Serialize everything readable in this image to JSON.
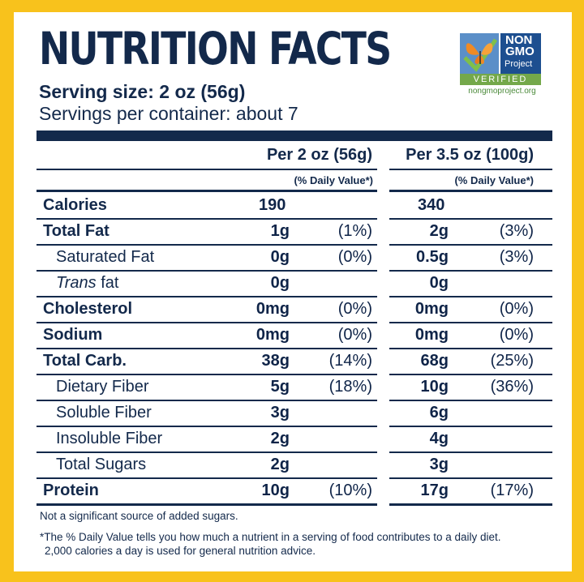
{
  "title": "NUTRITION FACTS",
  "serving_size": "Serving size: 2 oz (56g)",
  "servings_per_container": "Servings per container: about 7",
  "logo": {
    "line1": "NON",
    "line2": "GMO",
    "line3": "Project",
    "verified": "VERIFIED",
    "url": "nongmoproject.org",
    "icon": "butterfly-icon"
  },
  "columns": {
    "col1_header": "Per 2 oz (56g)",
    "col2_header": "Per 3.5 oz (100g)",
    "dv_label": "(% Daily Value*)"
  },
  "rows": [
    {
      "name": "Calories",
      "v1": "190",
      "d1": "",
      "v2": "340",
      "d2": ""
    },
    {
      "name": "Total Fat",
      "v1": "1g",
      "d1": "(1%)",
      "v2": "2g",
      "d2": "(3%)"
    },
    {
      "name": "Saturated Fat",
      "v1": "0g",
      "d1": "(0%)",
      "v2": "0.5g",
      "d2": "(3%)"
    },
    {
      "name_italic": "Trans",
      "name_rest": " fat",
      "v1": "0g",
      "d1": "",
      "v2": "0g",
      "d2": ""
    },
    {
      "name": "Cholesterol",
      "v1": "0mg",
      "d1": "(0%)",
      "v2": "0mg",
      "d2": "(0%)"
    },
    {
      "name": "Sodium",
      "v1": "0mg",
      "d1": "(0%)",
      "v2": "0mg",
      "d2": "(0%)"
    },
    {
      "name": "Total Carb.",
      "v1": "38g",
      "d1": "(14%)",
      "v2": "68g",
      "d2": "(25%)"
    },
    {
      "name": "Dietary Fiber",
      "v1": "5g",
      "d1": "(18%)",
      "v2": "10g",
      "d2": "(36%)"
    },
    {
      "name": "Soluble Fiber",
      "v1": "3g",
      "d1": "",
      "v2": "6g",
      "d2": ""
    },
    {
      "name": "Insoluble Fiber",
      "v1": "2g",
      "d1": "",
      "v2": "4g",
      "d2": ""
    },
    {
      "name": "Total Sugars",
      "v1": "2g",
      "d1": "",
      "v2": "3g",
      "d2": ""
    },
    {
      "name": "Protein",
      "v1": "10g",
      "d1": "(10%)",
      "v2": "17g",
      "d2": "(17%)"
    }
  ],
  "footnotes": {
    "added_sugars": "Not a significant source of added sugars.",
    "dv_line1": "*The % Daily Value tells you how much a nutrient in a serving of food contributes to a daily diet.",
    "dv_line2": "2,000 calories a day is used for general nutrition advice."
  },
  "colors": {
    "background": "#f8c21c",
    "ink": "#13294b",
    "logo_blue": "#1d4f90",
    "logo_green": "#74a84a"
  }
}
